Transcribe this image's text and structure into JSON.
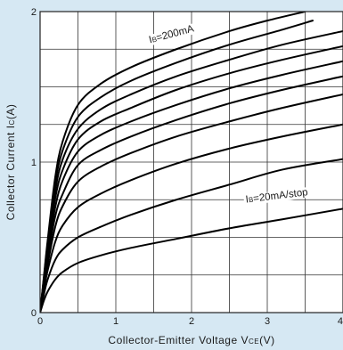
{
  "chart_data": {
    "type": "line",
    "title": "",
    "xlabel": "Collector-Emitter Voltage V",
    "xlabel_sub": "CE",
    "xlabel_unit": "(V)",
    "ylabel": "Collector Current I",
    "ylabel_sub": "C",
    "ylabel_unit": "(A)",
    "xlim": [
      0,
      4
    ],
    "ylim": [
      0,
      2
    ],
    "x_ticks": [
      "0",
      "1",
      "2",
      "3",
      "4"
    ],
    "y_ticks": [
      "0",
      "1",
      "2"
    ],
    "grid": true,
    "series_color": "#000000",
    "series": [
      {
        "x": [
          0,
          0.05,
          0.1,
          0.2,
          0.3,
          0.5,
          0.8,
          1.2,
          1.8,
          2.5,
          3.2,
          4.0
        ],
        "values": [
          0,
          0.08,
          0.14,
          0.22,
          0.27,
          0.33,
          0.38,
          0.43,
          0.49,
          0.56,
          0.62,
          0.69
        ]
      },
      {
        "x": [
          0,
          0.05,
          0.1,
          0.2,
          0.3,
          0.5,
          0.8,
          1.2,
          1.8,
          2.5,
          3.2,
          4.0
        ],
        "values": [
          0,
          0.12,
          0.22,
          0.35,
          0.42,
          0.5,
          0.57,
          0.65,
          0.75,
          0.85,
          0.95,
          1.02
        ]
      },
      {
        "x": [
          0,
          0.05,
          0.1,
          0.2,
          0.3,
          0.5,
          0.8,
          1.2,
          1.8,
          2.5,
          3.2,
          4.0
        ],
        "values": [
          0,
          0.15,
          0.28,
          0.47,
          0.58,
          0.7,
          0.79,
          0.88,
          0.99,
          1.09,
          1.17,
          1.25
        ]
      },
      {
        "x": [
          0,
          0.05,
          0.1,
          0.2,
          0.3,
          0.5,
          0.8,
          1.2,
          1.8,
          2.5,
          3.2,
          4.0
        ],
        "values": [
          0,
          0.17,
          0.32,
          0.57,
          0.71,
          0.87,
          0.97,
          1.06,
          1.17,
          1.27,
          1.36,
          1.45
        ]
      },
      {
        "x": [
          0,
          0.05,
          0.1,
          0.2,
          0.3,
          0.5,
          0.8,
          1.2,
          1.8,
          2.5,
          3.2,
          4.0
        ],
        "values": [
          0,
          0.19,
          0.36,
          0.64,
          0.79,
          0.98,
          1.08,
          1.17,
          1.28,
          1.39,
          1.48,
          1.57
        ]
      },
      {
        "x": [
          0,
          0.05,
          0.1,
          0.2,
          0.3,
          0.5,
          0.8,
          1.2,
          1.8,
          2.5,
          3.2,
          4.0
        ],
        "values": [
          0,
          0.2,
          0.39,
          0.7,
          0.88,
          1.07,
          1.18,
          1.27,
          1.38,
          1.49,
          1.58,
          1.67
        ]
      },
      {
        "x": [
          0,
          0.05,
          0.1,
          0.2,
          0.3,
          0.5,
          0.8,
          1.2,
          1.8,
          2.5,
          3.2,
          4.0
        ],
        "values": [
          0,
          0.21,
          0.42,
          0.76,
          0.95,
          1.15,
          1.27,
          1.36,
          1.48,
          1.59,
          1.68,
          1.77
        ]
      },
      {
        "x": [
          0,
          0.05,
          0.1,
          0.2,
          0.3,
          0.5,
          0.8,
          1.2,
          1.8,
          2.5,
          3.2,
          4.0
        ],
        "values": [
          0,
          0.22,
          0.44,
          0.81,
          1.02,
          1.22,
          1.35,
          1.45,
          1.57,
          1.68,
          1.78,
          1.87
        ]
      },
      {
        "x": [
          0,
          0.05,
          0.1,
          0.2,
          0.3,
          0.5,
          0.8,
          1.2,
          1.8,
          2.5,
          3.2,
          3.6
        ],
        "values": [
          0,
          0.23,
          0.46,
          0.86,
          1.08,
          1.3,
          1.43,
          1.54,
          1.66,
          1.78,
          1.88,
          1.94
        ]
      },
      {
        "x": [
          0,
          0.05,
          0.1,
          0.2,
          0.3,
          0.5,
          0.8,
          1.2,
          1.8,
          2.5,
          3.0,
          3.5
        ],
        "values": [
          0,
          0.24,
          0.48,
          0.9,
          1.14,
          1.38,
          1.52,
          1.63,
          1.75,
          1.87,
          1.94,
          2.0
        ]
      }
    ],
    "annotations": [
      {
        "prefix": "I",
        "sub": "B",
        "text": "=200mA",
        "x": 1.45,
        "y": 1.79,
        "angle": -15
      },
      {
        "prefix": "I",
        "sub": "B",
        "text": "=20mA/stop",
        "x": 2.72,
        "y": 0.73,
        "angle": -7
      }
    ]
  }
}
